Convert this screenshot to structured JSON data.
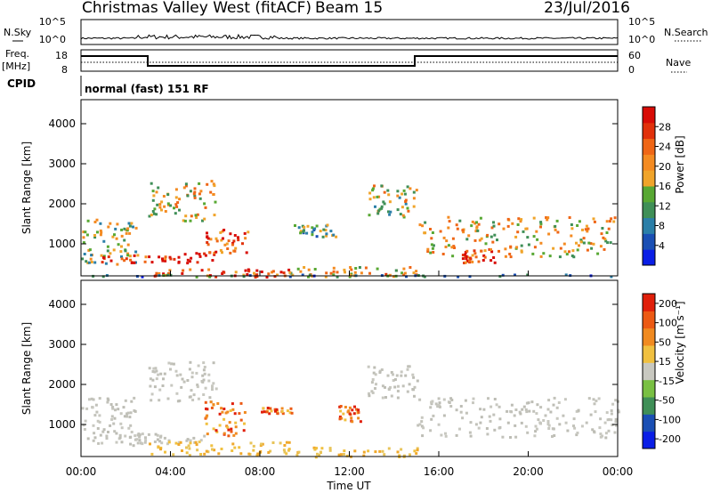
{
  "header": {
    "station": "Christmas Valley West (fitACF)",
    "beam": "Beam 15",
    "date": "23/Jul/2016"
  },
  "sky_panel": {
    "left_label": "N.Sky",
    "right_label": "N.Search",
    "tick_top_left": "10^5",
    "tick_bottom_left": "10^0",
    "tick_top_right": "10^5",
    "tick_bottom_right": "10^0"
  },
  "freq_panel": {
    "left_label_1": "Freq.",
    "left_label_2": "[MHz]",
    "right_label": "Nave",
    "tick_top_left": "18",
    "tick_bottom_left": "8",
    "tick_top_right": "60",
    "tick_bottom_right": "0"
  },
  "cpid": {
    "label": "CPID",
    "text": "normal (fast) 151 RF"
  },
  "chart_data": [
    {
      "type": "heatmap",
      "name": "power",
      "ylabel": "Slant Range [km]",
      "yticks": [
        "1000",
        "2000",
        "3000",
        "4000"
      ],
      "ylim": [
        200,
        4600
      ],
      "colorbar": {
        "label": "Power [dB]",
        "ticks": [
          "4",
          "8",
          "12",
          "16",
          "20",
          "24",
          "28"
        ],
        "colors": [
          "#0a1ee6",
          "#1a4fb4",
          "#2b7fa8",
          "#3f8f57",
          "#58a833",
          "#f0a42a",
          "#f48b22",
          "#ef6616",
          "#e1310b",
          "#d80c06"
        ]
      },
      "regions": [
        {
          "t0": 0.0,
          "t1": 2.5,
          "r0": 500,
          "r1": 1700,
          "level": 0.45
        },
        {
          "t0": 0.7,
          "t1": 6.0,
          "r0": 550,
          "r1": 800,
          "level": 0.9
        },
        {
          "t0": 3.0,
          "t1": 6.0,
          "r0": 1600,
          "r1": 2600,
          "level": 0.55
        },
        {
          "t0": 5.5,
          "t1": 7.5,
          "r0": 800,
          "r1": 1400,
          "level": 0.75
        },
        {
          "t0": 3.0,
          "t1": 9.5,
          "r0": 200,
          "r1": 400,
          "level": 0.8
        },
        {
          "t0": 9.0,
          "t1": 15.0,
          "r0": 200,
          "r1": 450,
          "level": 0.6
        },
        {
          "t0": 9.5,
          "t1": 11.5,
          "r0": 1200,
          "r1": 1500,
          "level": 0.35
        },
        {
          "t0": 12.8,
          "t1": 15.0,
          "r0": 1700,
          "r1": 2500,
          "level": 0.5
        },
        {
          "t0": 15.0,
          "t1": 24.0,
          "r0": 700,
          "r1": 1700,
          "level": 0.55
        },
        {
          "t0": 17.0,
          "t1": 18.5,
          "r0": 550,
          "r1": 900,
          "level": 0.9
        },
        {
          "t0": 0.0,
          "t1": 24.0,
          "r0": 200,
          "r1": 260,
          "level": 0.3
        }
      ]
    },
    {
      "type": "heatmap",
      "name": "velocity",
      "ylabel": "Slant Range [km]",
      "yticks": [
        "1000",
        "2000",
        "3000",
        "4000"
      ],
      "ylim": [
        200,
        4600
      ],
      "colorbar": {
        "label": "Velocity [m s⁻¹]",
        "ticks": [
          "200",
          "100",
          "50",
          "15",
          "-15",
          "-50",
          "-100",
          "-200"
        ],
        "colors": [
          "#0a1ee6",
          "#1a4fb4",
          "#3f8f57",
          "#79c043",
          "#c8c8c0",
          "#f0c040",
          "#f08a20",
          "#ec5a14",
          "#e01f0a"
        ]
      },
      "regions": [
        {
          "t0": 0.0,
          "t1": 2.5,
          "r0": 500,
          "r1": 1700,
          "kind": "ground"
        },
        {
          "t0": 0.7,
          "t1": 5.5,
          "r0": 550,
          "r1": 800,
          "kind": "ground"
        },
        {
          "t0": 3.0,
          "t1": 6.0,
          "r0": 1600,
          "r1": 2600,
          "kind": "ground"
        },
        {
          "t0": 5.5,
          "t1": 7.3,
          "r0": 700,
          "r1": 1600,
          "kind": "away"
        },
        {
          "t0": 3.0,
          "t1": 9.5,
          "r0": 250,
          "r1": 600,
          "kind": "away-weak"
        },
        {
          "t0": 8.0,
          "t1": 9.5,
          "r0": 1300,
          "r1": 1450,
          "kind": "away"
        },
        {
          "t0": 11.5,
          "t1": 12.5,
          "r0": 1100,
          "r1": 1500,
          "kind": "away"
        },
        {
          "t0": 12.8,
          "t1": 15.0,
          "r0": 1700,
          "r1": 2500,
          "kind": "ground"
        },
        {
          "t0": 15.0,
          "t1": 24.0,
          "r0": 700,
          "r1": 1700,
          "kind": "ground"
        },
        {
          "t0": 9.0,
          "t1": 15.0,
          "r0": 200,
          "r1": 450,
          "kind": "away-weak"
        }
      ]
    }
  ],
  "x_axis": {
    "ticks": [
      "00:00",
      "04:00",
      "08:00",
      "12:00",
      "16:00",
      "20:00",
      "00:00"
    ],
    "label": "Time UT"
  }
}
